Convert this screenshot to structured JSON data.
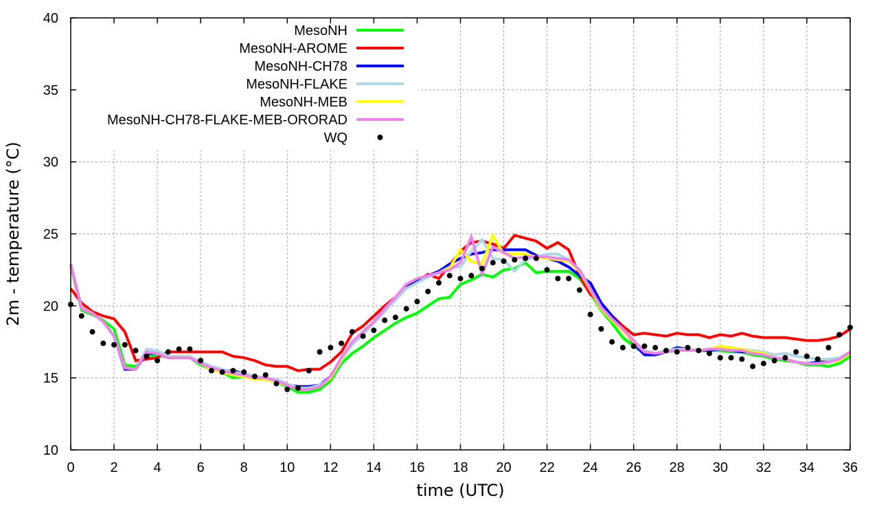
{
  "chart_data": {
    "type": "line",
    "title": "",
    "xlabel": "time (UTC)",
    "ylabel": "2m - temperature (°C)",
    "xlim": [
      0,
      36
    ],
    "ylim": [
      10,
      40
    ],
    "xticks": [
      0,
      2,
      4,
      6,
      8,
      10,
      12,
      14,
      16,
      18,
      20,
      22,
      24,
      26,
      28,
      30,
      32,
      34,
      36
    ],
    "yticks": [
      10,
      15,
      20,
      25,
      30,
      35,
      40
    ],
    "grid": true,
    "legend_position": "top-left",
    "series": [
      {
        "name": "MesoNH",
        "style": "line",
        "color": "#00ff00",
        "x": [
          0,
          0.5,
          1,
          1.5,
          2,
          2.5,
          3,
          3.5,
          4,
          4.5,
          5,
          5.5,
          6,
          6.5,
          7,
          7.5,
          8,
          8.5,
          9,
          9.5,
          10,
          10.5,
          11,
          11.5,
          12,
          12.5,
          13,
          13.5,
          14,
          14.5,
          15,
          15.5,
          16,
          16.5,
          17,
          17.5,
          18,
          18.5,
          19,
          19.5,
          20,
          20.5,
          21,
          21.5,
          22,
          22.5,
          23,
          23.5,
          24,
          24.5,
          25,
          25.5,
          26,
          26.5,
          27,
          27.5,
          28,
          28.5,
          29,
          29.5,
          30,
          30.5,
          31,
          31.5,
          32,
          32.5,
          33,
          33.5,
          34,
          34.5,
          35,
          35.5,
          36
        ],
        "y": [
          22.8,
          19.7,
          19.4,
          19.0,
          18.4,
          15.9,
          15.8,
          16.5,
          16.6,
          16.4,
          16.4,
          16.4,
          15.9,
          15.6,
          15.4,
          15.0,
          15.1,
          14.9,
          14.9,
          14.7,
          14.4,
          14.0,
          14.0,
          14.2,
          14.8,
          16.0,
          16.7,
          17.2,
          17.8,
          18.3,
          18.8,
          19.2,
          19.5,
          20.0,
          20.5,
          20.6,
          21.5,
          21.8,
          22.2,
          22.0,
          22.5,
          22.6,
          23.0,
          22.3,
          22.4,
          22.4,
          22.4,
          21.9,
          20.9,
          19.7,
          18.8,
          17.8,
          17.2,
          16.7,
          16.7,
          16.8,
          17.0,
          16.9,
          16.9,
          16.9,
          16.9,
          16.8,
          16.8,
          16.6,
          16.5,
          16.3,
          16.2,
          16.1,
          15.9,
          15.9,
          15.8,
          16.0,
          16.5
        ]
      },
      {
        "name": "MesoNH-AROME",
        "style": "line",
        "color": "#ff0000",
        "x": [
          0,
          0.5,
          1,
          1.5,
          2,
          2.5,
          3,
          3.5,
          4,
          4.5,
          5,
          5.5,
          6,
          6.5,
          7,
          7.5,
          8,
          8.5,
          9,
          9.5,
          10,
          10.5,
          11,
          11.5,
          12,
          12.5,
          13,
          13.5,
          14,
          14.5,
          15,
          15.5,
          16,
          16.5,
          17,
          17.5,
          18,
          18.5,
          19,
          19.5,
          20,
          20.5,
          21,
          21.5,
          22,
          22.5,
          23,
          23.5,
          24,
          24.5,
          25,
          25.5,
          26,
          26.5,
          27,
          27.5,
          28,
          28.5,
          29,
          29.5,
          30,
          30.5,
          31,
          31.5,
          32,
          32.5,
          33,
          33.5,
          34,
          34.5,
          35,
          35.5,
          36
        ],
        "y": [
          21.2,
          20.2,
          19.6,
          19.3,
          19.1,
          18.2,
          16.2,
          16.3,
          16.4,
          16.8,
          16.8,
          16.8,
          16.8,
          16.8,
          16.8,
          16.5,
          16.4,
          16.2,
          15.9,
          15.8,
          15.8,
          15.5,
          15.6,
          15.6,
          16.1,
          16.8,
          18.1,
          18.6,
          19.3,
          20.0,
          20.6,
          21.4,
          21.7,
          22.2,
          21.9,
          22.8,
          23.8,
          24.4,
          24.5,
          24.3,
          24.0,
          24.9,
          24.7,
          24.5,
          24.0,
          24.4,
          23.9,
          22.1,
          20.8,
          20.2,
          19.3,
          18.6,
          18.0,
          18.1,
          18.0,
          17.9,
          18.1,
          18.0,
          18.0,
          17.8,
          18.0,
          17.9,
          18.1,
          17.9,
          17.8,
          17.8,
          17.8,
          17.7,
          17.6,
          17.6,
          17.7,
          17.9,
          18.4
        ]
      },
      {
        "name": "MesoNH-CH78",
        "style": "line",
        "color": "#0000ff",
        "x": [
          0,
          0.5,
          1,
          1.5,
          2,
          2.5,
          3,
          3.5,
          4,
          4.5,
          5,
          5.5,
          6,
          6.5,
          7,
          7.5,
          8,
          8.5,
          9,
          9.5,
          10,
          10.5,
          11,
          11.5,
          12,
          12.5,
          13,
          13.5,
          14,
          14.5,
          15,
          15.5,
          16,
          16.5,
          17,
          17.5,
          18,
          18.5,
          19,
          19.5,
          20,
          20.5,
          21,
          21.5,
          22,
          22.5,
          23,
          23.5,
          24,
          24.5,
          25,
          25.5,
          26,
          26.5,
          27,
          27.5,
          28,
          28.5,
          29,
          29.5,
          30,
          30.5,
          31,
          31.5,
          32,
          32.5,
          33,
          33.5,
          34,
          34.5,
          35,
          35.5,
          36
        ],
        "y": [
          22.9,
          19.9,
          19.5,
          18.9,
          17.9,
          15.6,
          15.6,
          16.7,
          16.7,
          16.4,
          16.4,
          16.4,
          16.0,
          15.7,
          15.5,
          15.5,
          15.3,
          15.1,
          15.0,
          14.8,
          14.5,
          14.4,
          14.4,
          14.5,
          15.1,
          16.3,
          17.4,
          18.2,
          18.9,
          19.8,
          20.6,
          21.4,
          21.8,
          22.1,
          22.4,
          22.9,
          23.3,
          23.6,
          23.7,
          23.9,
          23.9,
          23.9,
          23.9,
          23.5,
          23.3,
          23.1,
          22.7,
          22.1,
          21.6,
          20.2,
          19.3,
          18.4,
          17.4,
          16.6,
          16.6,
          16.8,
          17.1,
          17.0,
          16.9,
          16.9,
          17.0,
          16.9,
          16.8,
          16.8,
          16.6,
          16.4,
          16.3,
          16.1,
          16.0,
          16.1,
          16.1,
          16.3,
          16.7
        ]
      },
      {
        "name": "MesoNH-FLAKE",
        "style": "line",
        "color": "#add8e6",
        "x": [
          0,
          0.5,
          1,
          1.5,
          2,
          2.5,
          3,
          3.5,
          4,
          4.5,
          5,
          5.5,
          6,
          6.5,
          7,
          7.5,
          8,
          8.5,
          9,
          9.5,
          10,
          10.5,
          11,
          11.5,
          12,
          12.5,
          13,
          13.5,
          14,
          14.5,
          15,
          15.5,
          16,
          16.5,
          17,
          17.5,
          18,
          18.5,
          19,
          19.5,
          20,
          20.5,
          21,
          21.5,
          22,
          22.5,
          23,
          23.5,
          24,
          24.5,
          25,
          25.5,
          26,
          26.5,
          27,
          27.5,
          28,
          28.5,
          29,
          29.5,
          30,
          30.5,
          31,
          31.5,
          32,
          32.5,
          33,
          33.5,
          34,
          34.5,
          35,
          35.5,
          36
        ],
        "y": [
          22.9,
          19.9,
          19.5,
          18.9,
          17.9,
          15.7,
          15.6,
          17.0,
          16.9,
          16.5,
          16.5,
          16.5,
          16.1,
          15.8,
          15.6,
          15.4,
          15.3,
          15.1,
          15.0,
          14.9,
          14.6,
          14.3,
          14.3,
          14.5,
          15.0,
          16.2,
          17.3,
          18.0,
          18.8,
          19.6,
          20.4,
          21.2,
          21.6,
          22.0,
          22.3,
          22.7,
          22.7,
          23.8,
          24.6,
          23.3,
          23.2,
          22.4,
          23.2,
          23.4,
          23.6,
          23.6,
          23.2,
          22.5,
          21.2,
          19.9,
          19.1,
          18.4,
          17.6,
          16.9,
          16.7,
          16.9,
          17.0,
          17.0,
          16.9,
          17.0,
          17.1,
          17.1,
          17.0,
          16.9,
          16.8,
          16.6,
          16.7,
          16.5,
          16.4,
          16.3,
          16.3,
          16.4,
          16.8
        ]
      },
      {
        "name": "MesoNH-MEB",
        "style": "line",
        "color": "#ffff00",
        "x": [
          0,
          0.5,
          1,
          1.5,
          2,
          2.5,
          3,
          3.5,
          4,
          4.5,
          5,
          5.5,
          6,
          6.5,
          7,
          7.5,
          8,
          8.5,
          9,
          9.5,
          10,
          10.5,
          11,
          11.5,
          12,
          12.5,
          13,
          13.5,
          14,
          14.5,
          15,
          15.5,
          16,
          16.5,
          17,
          17.5,
          18,
          18.5,
          19,
          19.5,
          20,
          20.5,
          21,
          21.5,
          22,
          22.5,
          23,
          23.5,
          24,
          24.5,
          25,
          25.5,
          26,
          26.5,
          27,
          27.5,
          28,
          28.5,
          29,
          29.5,
          30,
          30.5,
          31,
          31.5,
          32,
          32.5,
          33,
          33.5,
          34,
          34.5,
          35,
          35.5,
          36
        ],
        "y": [
          22.9,
          19.8,
          19.5,
          18.9,
          17.9,
          15.7,
          15.6,
          16.8,
          16.7,
          16.4,
          16.4,
          16.4,
          16.0,
          15.6,
          15.4,
          15.2,
          15.1,
          14.9,
          14.9,
          14.7,
          14.5,
          14.2,
          14.2,
          14.4,
          15.0,
          16.3,
          17.5,
          18.2,
          18.9,
          19.8,
          20.6,
          21.5,
          21.9,
          22.1,
          22.3,
          22.6,
          23.9,
          23.1,
          22.9,
          24.9,
          23.6,
          23.6,
          23.6,
          23.4,
          23.3,
          23.2,
          23.1,
          22.4,
          21.1,
          19.8,
          19.0,
          18.3,
          17.5,
          16.8,
          16.7,
          16.8,
          16.9,
          16.9,
          16.9,
          17.0,
          17.2,
          17.1,
          17.0,
          16.8,
          16.7,
          16.4,
          16.3,
          16.1,
          16.0,
          16.0,
          16.1,
          16.2,
          16.7
        ]
      },
      {
        "name": "MesoNH-CH78-FLAKE-MEB-ORORAD",
        "style": "line",
        "color": "#ee82ee",
        "x": [
          0,
          0.5,
          1,
          1.5,
          2,
          2.5,
          3,
          3.5,
          4,
          4.5,
          5,
          5.5,
          6,
          6.5,
          7,
          7.5,
          8,
          8.5,
          9,
          9.5,
          10,
          10.5,
          11,
          11.5,
          12,
          12.5,
          13,
          13.5,
          14,
          14.5,
          15,
          15.5,
          16,
          16.5,
          17,
          17.5,
          18,
          18.5,
          19,
          19.5,
          20,
          20.5,
          21,
          21.5,
          22,
          22.5,
          23,
          23.5,
          24,
          24.5,
          25,
          25.5,
          26,
          26.5,
          27,
          27.5,
          28,
          28.5,
          29,
          29.5,
          30,
          30.5,
          31,
          31.5,
          32,
          32.5,
          33,
          33.5,
          34,
          34.5,
          35,
          35.5,
          36
        ],
        "y": [
          22.9,
          19.8,
          19.5,
          18.9,
          17.9,
          15.7,
          15.6,
          16.8,
          16.7,
          16.4,
          16.4,
          16.4,
          16.0,
          15.7,
          15.5,
          15.3,
          15.2,
          15.0,
          15.0,
          14.8,
          14.5,
          14.2,
          14.2,
          14.4,
          15.1,
          16.4,
          17.5,
          18.2,
          18.9,
          19.8,
          20.6,
          21.5,
          21.9,
          22.1,
          22.3,
          22.5,
          23.0,
          24.8,
          22.2,
          24.1,
          23.7,
          23.3,
          23.4,
          23.4,
          23.4,
          23.3,
          23.2,
          22.5,
          21.2,
          19.9,
          19.1,
          18.4,
          17.6,
          16.8,
          16.7,
          16.8,
          16.9,
          16.9,
          16.9,
          17.0,
          17.0,
          16.9,
          16.9,
          16.7,
          16.6,
          16.4,
          16.3,
          16.1,
          16.0,
          16.0,
          16.1,
          16.3,
          16.8
        ]
      },
      {
        "name": "WQ",
        "style": "points",
        "color": "#000000",
        "x": [
          0,
          0.5,
          1,
          1.5,
          2,
          2.5,
          3,
          3.5,
          4,
          4.5,
          5,
          5.5,
          6,
          6.5,
          7,
          7.5,
          8,
          8.5,
          9,
          9.5,
          10,
          10.5,
          11,
          11.5,
          12,
          12.5,
          13,
          13.5,
          14,
          14.5,
          15,
          15.5,
          16,
          16.5,
          17,
          17.5,
          18,
          18.5,
          19,
          19.5,
          20,
          20.5,
          21,
          21.5,
          22,
          22.5,
          23,
          23.5,
          24,
          24.5,
          25,
          25.5,
          26,
          26.5,
          27,
          27.5,
          28,
          28.5,
          29,
          29.5,
          30,
          30.5,
          31,
          31.5,
          32,
          32.5,
          33,
          33.5,
          34,
          34.5,
          35,
          35.5,
          36
        ],
        "y": [
          20.1,
          19.3,
          18.2,
          17.4,
          17.3,
          17.3,
          16.9,
          16.5,
          16.2,
          16.8,
          17.0,
          17.0,
          16.2,
          15.5,
          15.4,
          15.5,
          15.4,
          15.1,
          15.2,
          14.6,
          14.2,
          14.3,
          15.5,
          16.8,
          17.1,
          17.4,
          18.2,
          17.9,
          18.3,
          19.0,
          19.2,
          19.8,
          20.3,
          21.0,
          21.6,
          22.1,
          21.9,
          22.1,
          22.6,
          23.0,
          23.1,
          23.2,
          23.3,
          23.3,
          22.5,
          21.9,
          21.9,
          21.1,
          19.4,
          18.4,
          17.5,
          17.1,
          17.2,
          17.2,
          17.1,
          16.9,
          16.8,
          17.1,
          16.9,
          16.7,
          16.4,
          16.4,
          16.3,
          15.8,
          16.0,
          16.2,
          16.4,
          16.8,
          16.5,
          16.3,
          17.1,
          18.0,
          18.5
        ]
      }
    ]
  }
}
